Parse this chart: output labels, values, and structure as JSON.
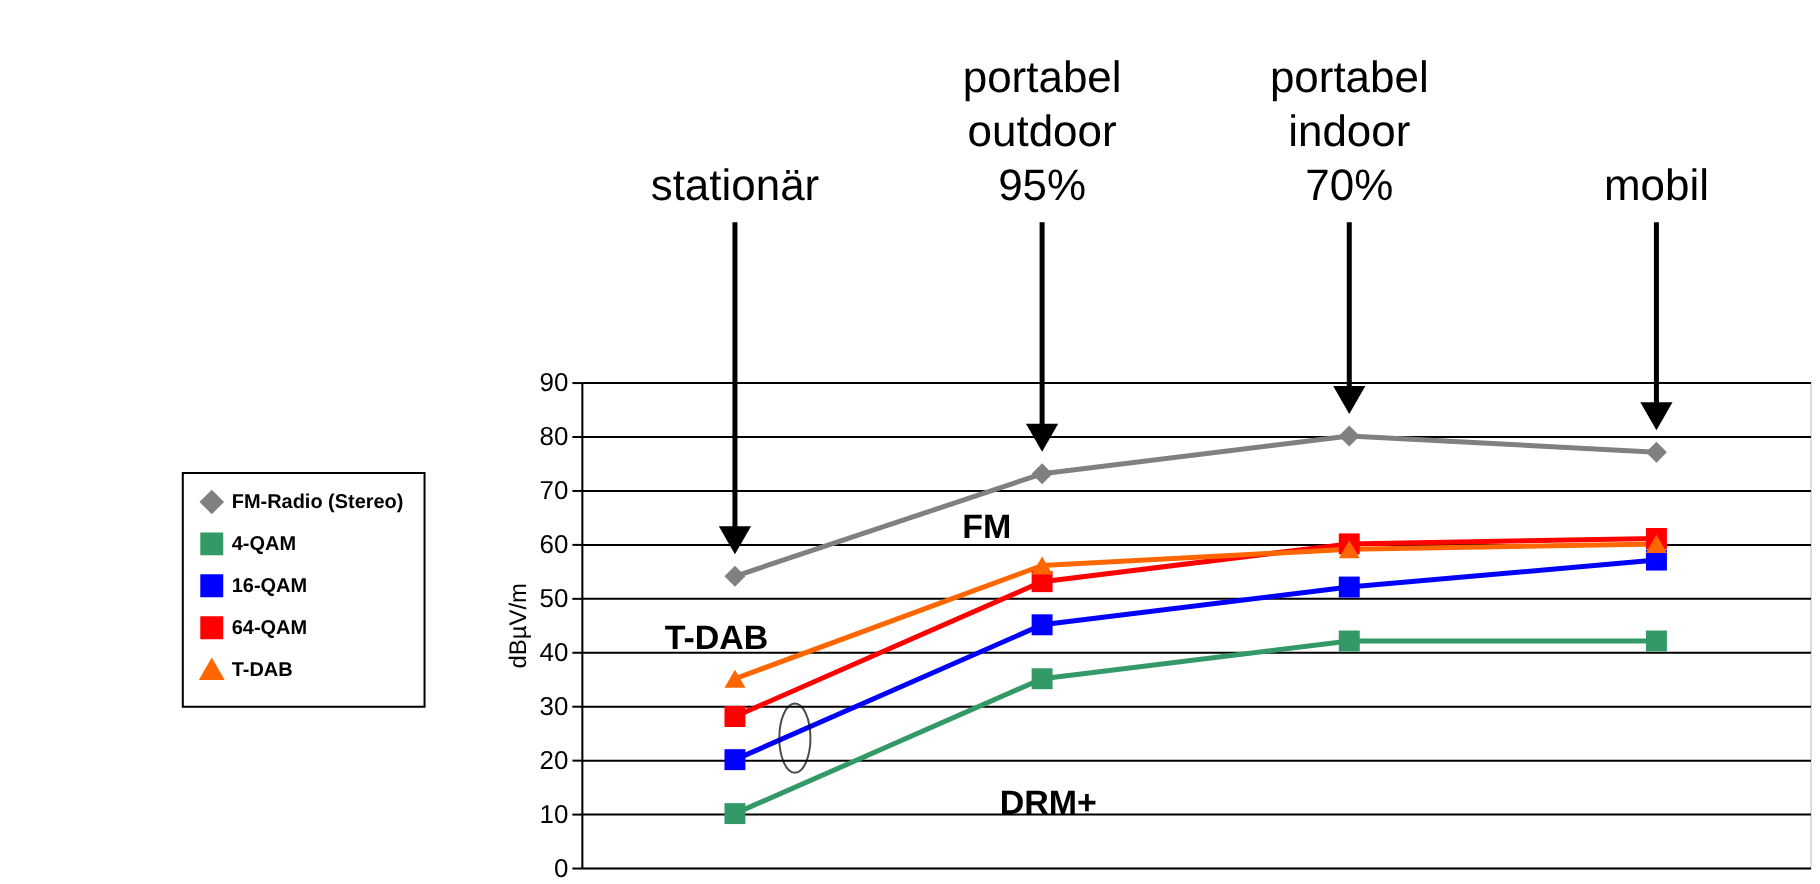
{
  "chart_data": {
    "type": "line",
    "categories": [
      "stationär",
      "portabel\noutdoor\n95%",
      "portabel\nindoor\n70%",
      "mobil"
    ],
    "ylabel": "dBµV/m",
    "ylim": [
      0,
      90
    ],
    "yticks": [
      0,
      10,
      20,
      30,
      40,
      50,
      60,
      70,
      80,
      90
    ],
    "grid": "y",
    "legend": "left",
    "series": [
      {
        "name": "FM-Radio (Stereo)",
        "color": "#808080",
        "marker": "diamond",
        "values": [
          54,
          73,
          80,
          77
        ]
      },
      {
        "name": "4-QAM",
        "color": "#339966",
        "marker": "square",
        "values": [
          10,
          35,
          42,
          42
        ]
      },
      {
        "name": "16-QAM",
        "color": "#0000ff",
        "marker": "square",
        "values": [
          20,
          45,
          52,
          57
        ]
      },
      {
        "name": "64-QAM",
        "color": "#ff0000",
        "marker": "square",
        "values": [
          28,
          53,
          60,
          61
        ]
      },
      {
        "name": "T-DAB",
        "color": "#ff6600",
        "marker": "triangle",
        "values": [
          35,
          56,
          59,
          60
        ]
      }
    ],
    "annotations": [
      "FM",
      "T-DAB",
      "DRM+"
    ]
  }
}
